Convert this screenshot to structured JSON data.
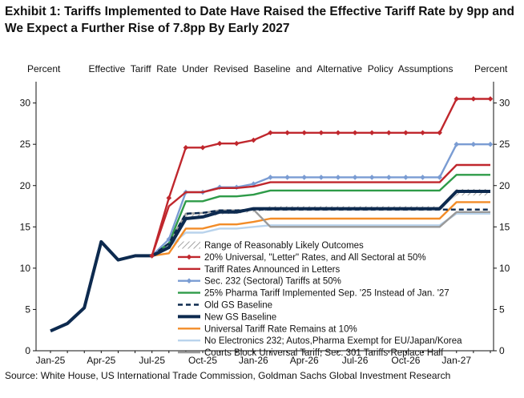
{
  "title": "Exhibit 1: Tariffs Implemented to Date Have Raised the Effective Tariff Rate by 9pp and We Expect a Further Rise of 7.8pp By Early 2027",
  "source": "Source: White House, US International Trade Commission, Goldman Sachs Global Investment Research",
  "chart_data": {
    "type": "line",
    "title": "Effective  Tariff  Rate  Under  Revised  Baseline  and  Alternative  Policy  Assumptions",
    "ylabel_left": "Percent",
    "ylabel_right": "Percent",
    "ylim": [
      0,
      32
    ],
    "yticks": [
      0,
      5,
      10,
      15,
      20,
      25,
      30
    ],
    "xlim": [
      0,
      26
    ],
    "x_tick_labels": [
      "Jan-25",
      "Apr-25",
      "Jul-25",
      "Oct-25",
      "Jan-26",
      "Apr-26",
      "Jul-26",
      "Oct-26",
      "Jan-27"
    ],
    "x_tick_positions": [
      0,
      3,
      6,
      9,
      12,
      15,
      18,
      21,
      24
    ],
    "x_months": [
      "Jan-25",
      "Feb-25",
      "Mar-25",
      "Apr-25",
      "May-25",
      "Jun-25",
      "Jul-25",
      "Aug-25",
      "Sep-25",
      "Oct-25",
      "Nov-25",
      "Dec-25",
      "Jan-26",
      "Feb-26",
      "Mar-26",
      "Apr-26",
      "May-26",
      "Jun-26",
      "Jul-26",
      "Aug-26",
      "Sep-26",
      "Oct-26",
      "Nov-26",
      "Dec-26",
      "Jan-27",
      "Feb-27",
      "Mar-27"
    ],
    "grid": false,
    "legend_placement": "bottom-center",
    "range_band": {
      "name": "Range of Reasonably Likely Outcomes",
      "x": [
        6,
        7,
        8,
        9,
        10,
        11,
        12,
        13,
        14,
        15,
        16,
        17,
        18,
        19,
        20,
        21,
        22,
        23,
        24,
        25,
        26
      ],
      "lower": [
        11.5,
        12.5,
        15.9,
        16.0,
        16.5,
        16.6,
        16.8,
        17.0,
        17.0,
        17.0,
        17.0,
        17.0,
        17.0,
        17.0,
        17.0,
        17.0,
        17.0,
        17.0,
        18.8,
        18.8,
        18.8
      ],
      "upper": [
        11.5,
        13.0,
        16.5,
        16.7,
        17.0,
        17.0,
        17.2,
        17.5,
        17.5,
        17.5,
        17.5,
        17.5,
        17.5,
        17.5,
        17.5,
        17.5,
        17.5,
        17.5,
        19.6,
        19.6,
        19.6
      ]
    },
    "series": [
      {
        "name": "20% Universal, \"Letter\" Rates, and All Sectoral at 50%",
        "color": "#c0272d",
        "marker": "diamond",
        "dash": "",
        "x": [
          6,
          7,
          8,
          9,
          10,
          11,
          12,
          13,
          14,
          15,
          16,
          17,
          18,
          19,
          20,
          21,
          22,
          23,
          24,
          25,
          26
        ],
        "values": [
          11.5,
          18.5,
          24.6,
          24.6,
          25.1,
          25.1,
          25.5,
          26.4,
          26.4,
          26.4,
          26.4,
          26.4,
          26.4,
          26.4,
          26.4,
          26.4,
          26.4,
          26.4,
          30.5,
          30.5,
          30.5
        ]
      },
      {
        "name": "Tariff Rates Announced in Letters",
        "color": "#c0272d",
        "marker": "",
        "dash": "",
        "x": [
          6,
          7,
          8,
          9,
          10,
          11,
          12,
          13,
          14,
          15,
          16,
          17,
          18,
          19,
          20,
          21,
          22,
          23,
          24,
          25,
          26
        ],
        "values": [
          11.5,
          17.5,
          19.2,
          19.2,
          19.7,
          19.7,
          19.9,
          20.4,
          20.4,
          20.4,
          20.4,
          20.4,
          20.4,
          20.4,
          20.4,
          20.4,
          20.4,
          20.4,
          22.5,
          22.5,
          22.5
        ]
      },
      {
        "name": "Sec. 232 (Sectoral) Tariffs at 50%",
        "color": "#7a9cd3",
        "marker": "diamond",
        "dash": "",
        "x": [
          6,
          7,
          8,
          9,
          10,
          11,
          12,
          13,
          14,
          15,
          16,
          17,
          18,
          19,
          20,
          21,
          22,
          23,
          24,
          25,
          26
        ],
        "values": [
          11.5,
          13.5,
          19.2,
          19.2,
          19.8,
          19.8,
          20.2,
          21.0,
          21.0,
          21.0,
          21.0,
          21.0,
          21.0,
          21.0,
          21.0,
          21.0,
          21.0,
          21.0,
          25.0,
          25.0,
          25.0
        ]
      },
      {
        "name": "25% Pharma Tariff Implemented Sep. '25 Instead of Jan. '27",
        "color": "#2e9b48",
        "marker": "",
        "dash": "",
        "x": [
          6,
          7,
          8,
          9,
          10,
          11,
          12,
          13,
          14,
          15,
          16,
          17,
          18,
          19,
          20,
          21,
          22,
          23,
          24,
          25,
          26
        ],
        "values": [
          11.5,
          13.0,
          18.1,
          18.1,
          18.7,
          18.7,
          18.9,
          19.4,
          19.4,
          19.4,
          19.4,
          19.4,
          19.4,
          19.4,
          19.4,
          19.4,
          19.4,
          19.4,
          21.3,
          21.3,
          21.3
        ]
      },
      {
        "name": "Old GS Baseline",
        "color": "#0d2a4f",
        "marker": "",
        "dash": "6,4",
        "x": [
          6,
          7,
          8,
          9,
          10,
          11,
          12,
          13,
          14,
          15,
          16,
          17,
          18,
          19,
          20,
          21,
          22,
          23,
          24,
          25,
          26
        ],
        "values": [
          11.5,
          13.0,
          16.6,
          16.7,
          17.0,
          17.0,
          17.1,
          17.1,
          17.1,
          17.1,
          17.1,
          17.1,
          17.1,
          17.1,
          17.1,
          17.1,
          17.1,
          17.1,
          17.1,
          17.1,
          17.1
        ]
      },
      {
        "name": "New GS Baseline",
        "color": "#0d2a4f",
        "marker": "",
        "dash": "",
        "width": 4,
        "x": [
          0,
          1,
          2,
          3,
          4,
          5,
          6,
          7,
          8,
          9,
          10,
          11,
          12,
          13,
          14,
          15,
          16,
          17,
          18,
          19,
          20,
          21,
          22,
          23,
          24,
          25,
          26
        ],
        "values": [
          2.4,
          3.3,
          5.2,
          13.2,
          11.0,
          11.5,
          11.5,
          12.5,
          16.0,
          16.2,
          16.8,
          16.8,
          17.2,
          17.2,
          17.2,
          17.2,
          17.2,
          17.2,
          17.2,
          17.2,
          17.2,
          17.2,
          17.2,
          17.2,
          19.3,
          19.3,
          19.3
        ]
      },
      {
        "name": "Universal Tariff Rate Remains at 10%",
        "color": "#f28c28",
        "marker": "",
        "dash": "",
        "x": [
          6,
          7,
          8,
          9,
          10,
          11,
          12,
          13,
          14,
          15,
          16,
          17,
          18,
          19,
          20,
          21,
          22,
          23,
          24,
          25,
          26
        ],
        "values": [
          11.5,
          11.8,
          14.8,
          14.8,
          15.3,
          15.3,
          15.6,
          16.0,
          16.0,
          16.0,
          16.0,
          16.0,
          16.0,
          16.0,
          16.0,
          16.0,
          16.0,
          16.0,
          18.0,
          18.0,
          18.0
        ]
      },
      {
        "name": "No Electronics 232; Autos,Pharma Exempt for EU/Japan/Korea",
        "color": "#b9d3ec",
        "marker": "",
        "dash": "",
        "x": [
          6,
          7,
          8,
          9,
          10,
          11,
          12,
          13,
          14,
          15,
          16,
          17,
          18,
          19,
          20,
          21,
          22,
          23,
          24,
          25,
          26
        ],
        "values": [
          11.5,
          12.6,
          14.3,
          14.3,
          14.8,
          14.8,
          15.0,
          15.2,
          15.2,
          15.2,
          15.2,
          15.2,
          15.2,
          15.2,
          15.2,
          15.2,
          15.2,
          15.2,
          16.6,
          16.6,
          16.6
        ]
      },
      {
        "name": "Courts Block Universal Tariff, Sec. 301 Tariffs Replace Half",
        "color": "#9a9a9a",
        "marker": "",
        "dash": "",
        "x": [
          6,
          7,
          8,
          9,
          10,
          11,
          12,
          13,
          14,
          15,
          16,
          17,
          18,
          19,
          20,
          21,
          22,
          23,
          24,
          25,
          26
        ],
        "values": [
          11.5,
          13.0,
          16.6,
          16.7,
          17.0,
          17.0,
          17.1,
          15.0,
          15.0,
          15.0,
          15.0,
          15.0,
          15.0,
          15.0,
          15.0,
          15.0,
          15.0,
          15.0,
          16.8,
          16.8,
          16.8
        ]
      }
    ]
  }
}
